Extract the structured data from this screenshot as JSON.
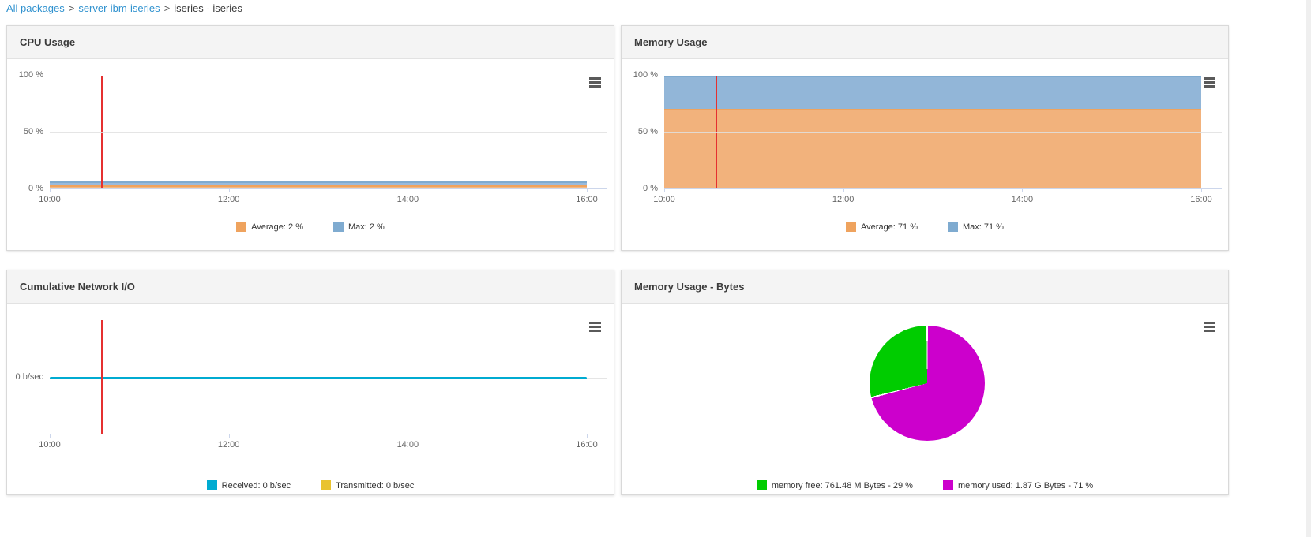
{
  "breadcrumb": {
    "separator": ">",
    "items": [
      {
        "label": "All packages",
        "type": "link"
      },
      {
        "label": "server-ibm-iseries",
        "type": "link"
      },
      {
        "label": "iseries - iseries",
        "type": "current"
      }
    ]
  },
  "colors": {
    "link": "#3092cf",
    "panel_header_bg": "#f4f4f4",
    "panel_border": "#d9d9d9",
    "grid_line": "#e6e6e6",
    "axis_line": "#ccd6eb",
    "time_marker": "#e53030",
    "menu_icon": "#5a5a5a"
  },
  "panels": {
    "cpu": {
      "title": "CPU Usage",
      "chart_data": {
        "type": "area",
        "title": "CPU Usage",
        "x_ticks": [
          "10:00",
          "12:00",
          "14:00",
          "16:00"
        ],
        "y_ticks": [
          "100 %",
          "50 %",
          "0 %"
        ],
        "ylim": [
          0,
          100
        ],
        "x_range": [
          "10:00",
          "16:00"
        ],
        "marker_time": "10:35",
        "legend_position": "bottom-center",
        "grid": true,
        "series": [
          {
            "name": "Average",
            "value": 2,
            "unit": "%",
            "legend": "Average: 2 %",
            "color": "#efa35e",
            "fill": "#f4b981",
            "band": [
              0,
              3.4
            ]
          },
          {
            "name": "Max",
            "value": 2,
            "unit": "%",
            "legend": "Max: 2 %",
            "color": "#7fabd0",
            "fill": "#99badc",
            "band": [
              3.4,
              6.8
            ]
          }
        ]
      }
    },
    "memory": {
      "title": "Memory Usage",
      "chart_data": {
        "type": "area",
        "title": "Memory Usage",
        "x_ticks": [
          "10:00",
          "12:00",
          "14:00",
          "16:00"
        ],
        "y_ticks": [
          "100 %",
          "50 %",
          "0 %"
        ],
        "ylim": [
          0,
          100
        ],
        "x_range": [
          "10:00",
          "16:00"
        ],
        "marker_time": "10:35",
        "legend_position": "bottom-center",
        "grid": true,
        "series": [
          {
            "name": "Average",
            "value": 71,
            "unit": "%",
            "legend": "Average: 71 %",
            "color": "#efa35e",
            "fill": "#f2b27c",
            "band": [
              0,
              71
            ]
          },
          {
            "name": "Max",
            "value": 71,
            "unit": "%",
            "legend": "Max: 71 %",
            "color": "#7fabd0",
            "fill": "#92b6d8",
            "band": [
              71,
              100
            ]
          }
        ]
      }
    },
    "network": {
      "title": "Cumulative Network I/O",
      "chart_data": {
        "type": "line",
        "title": "Cumulative Network I/O",
        "x_ticks": [
          "10:00",
          "12:00",
          "14:00",
          "16:00"
        ],
        "y_ticks": [
          "0 b/sec"
        ],
        "x_range": [
          "10:00",
          "16:00"
        ],
        "marker_time": "10:35",
        "legend_position": "bottom-center",
        "grid": true,
        "series": [
          {
            "name": "Received",
            "value": 0,
            "unit": "b/sec",
            "legend": "Received: 0 b/sec",
            "color": "#00abd1"
          },
          {
            "name": "Transmitted",
            "value": 0,
            "unit": "b/sec",
            "legend": "Transmitted: 0 b/sec",
            "color": "#e9c32f"
          }
        ]
      }
    },
    "memory_bytes": {
      "title": "Memory Usage - Bytes",
      "chart_data": {
        "type": "pie",
        "title": "Memory Usage - Bytes",
        "legend_position": "bottom-center",
        "slices": [
          {
            "name": "memory free",
            "value_label": "761.48 M Bytes",
            "percent": 29,
            "legend": "memory free: 761.48 M Bytes - 29 %",
            "color": "#00cc00"
          },
          {
            "name": "memory used",
            "value_label": "1.87 G Bytes",
            "percent": 71,
            "legend": "memory used: 1.87 G Bytes - 71 %",
            "color": "#cc00cc"
          }
        ]
      }
    }
  }
}
